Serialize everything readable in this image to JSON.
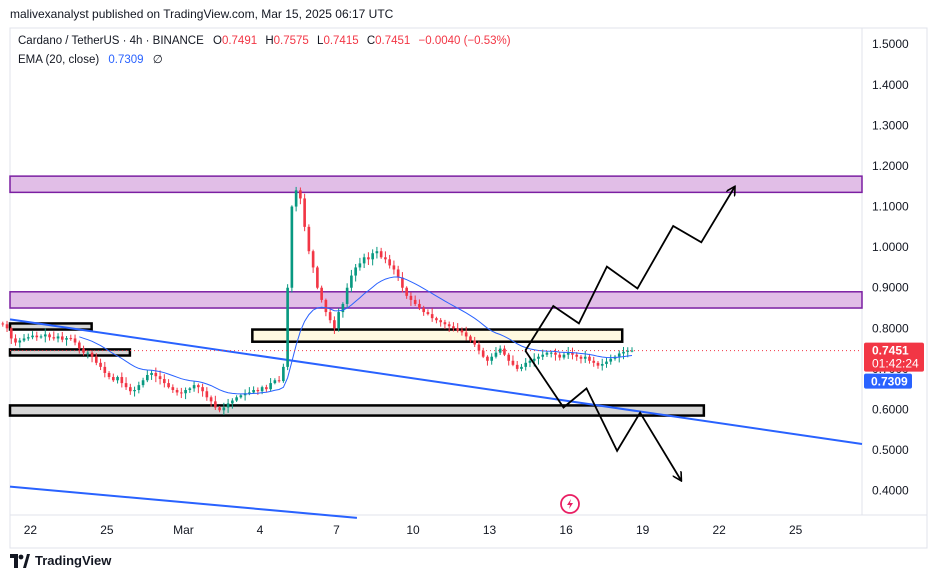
{
  "header": {
    "text": "malivexanalyst published on TradingView.com, Mar 15, 2025 06:17 UTC"
  },
  "legend": {
    "symbol": "Cardano / TetherUS · 4h · BINANCE",
    "o_label": "O",
    "o": "0.7491",
    "h_label": "H",
    "h": "0.7575",
    "l_label": "L",
    "l": "0.7415",
    "c_label": "C",
    "c": "0.7451",
    "change": "−0.0040 (−0.53%)",
    "ema_label": "EMA (20, close)",
    "ema_value": "0.7309",
    "ema_symbol": "∅"
  },
  "price_tags": {
    "last": "0.7451",
    "countdown": "01:42:24",
    "ema": "0.7309"
  },
  "footer": {
    "brand": "TradingView"
  },
  "colors": {
    "up": "#089981",
    "down": "#f23645",
    "ema": "#2962ff",
    "trend": "#2962ff",
    "zone_purple_fill": "#e1bee7",
    "zone_purple_border": "#7b1fa2",
    "zone_yellow_fill": "#fff9e1",
    "zone_gray_fill": "#d6d6d6",
    "projection": "#000000"
  },
  "chart_data": {
    "type": "candlestick",
    "instrument": "Cardano / TetherUS",
    "timeframe": "4h",
    "exchange": "BINANCE",
    "y_axis": {
      "ticks": [
        0.4,
        0.5,
        0.6,
        0.7,
        0.8,
        0.9,
        1.0,
        1.1,
        1.2,
        1.3,
        1.4,
        1.5
      ],
      "tick_labels": [
        "0.4000",
        "0.5000",
        "0.6000",
        "0.7000",
        "0.8000",
        "0.9000",
        "1.0000",
        "1.1000",
        "1.2000",
        "1.3000",
        "1.4000",
        "1.5000"
      ],
      "ylim": [
        0.34,
        1.54
      ]
    },
    "x_axis": {
      "tick_positions": [
        0,
        3,
        6,
        9,
        12,
        15,
        18,
        21,
        24,
        27,
        30
      ],
      "tick_labels": [
        "22",
        "25",
        "Mar",
        "4",
        "7",
        "10",
        "13",
        "16",
        "19",
        "22",
        "25"
      ],
      "xlim_days": [
        -0.8,
        32.6
      ],
      "first_tick": "Feb 22"
    },
    "closes_4h": [
      0.812,
      0.81,
      0.8,
      0.775,
      0.765,
      0.77,
      0.775,
      0.778,
      0.782,
      0.778,
      0.78,
      0.785,
      0.778,
      0.775,
      0.78,
      0.772,
      0.776,
      0.775,
      0.765,
      0.75,
      0.74,
      0.74,
      0.73,
      0.715,
      0.705,
      0.69,
      0.68,
      0.672,
      0.68,
      0.665,
      0.655,
      0.645,
      0.648,
      0.66,
      0.672,
      0.685,
      0.69,
      0.682,
      0.675,
      0.665,
      0.655,
      0.648,
      0.642,
      0.64,
      0.648,
      0.652,
      0.66,
      0.655,
      0.645,
      0.63,
      0.62,
      0.605,
      0.598,
      0.605,
      0.615,
      0.622,
      0.63,
      0.635,
      0.64,
      0.642,
      0.648,
      0.645,
      0.655,
      0.65,
      0.665,
      0.672,
      0.67,
      0.705,
      0.9,
      1.1,
      1.14,
      1.12,
      1.05,
      0.99,
      0.95,
      0.9,
      0.87,
      0.84,
      0.82,
      0.8,
      0.84,
      0.86,
      0.9,
      0.93,
      0.95,
      0.96,
      0.975,
      0.97,
      0.985,
      0.99,
      0.975,
      0.97,
      0.955,
      0.945,
      0.925,
      0.9,
      0.88,
      0.87,
      0.86,
      0.85,
      0.84,
      0.835,
      0.825,
      0.82,
      0.815,
      0.81,
      0.805,
      0.8,
      0.795,
      0.79,
      0.78,
      0.77,
      0.76,
      0.745,
      0.73,
      0.72,
      0.73,
      0.74,
      0.75,
      0.735,
      0.72,
      0.71,
      0.7,
      0.705,
      0.715,
      0.72,
      0.725,
      0.73,
      0.735,
      0.74,
      0.74,
      0.735,
      0.728,
      0.735,
      0.74,
      0.735,
      0.73,
      0.725,
      0.73,
      0.72,
      0.715,
      0.708,
      0.712,
      0.718,
      0.725,
      0.73,
      0.738,
      0.742,
      0.745,
      0.7451
    ],
    "ema_20": "0.7309",
    "last_close": 0.7451,
    "horizontal_zones": [
      {
        "name": "resistance-upper",
        "low": 1.135,
        "high": 1.175,
        "x_start": -0.8,
        "x_end": 32.6,
        "style": "purple"
      },
      {
        "name": "resistance-lower",
        "low": 0.85,
        "high": 0.89,
        "x_start": -0.8,
        "x_end": 32.6,
        "style": "purple"
      },
      {
        "name": "mid-zone",
        "low": 0.767,
        "high": 0.797,
        "x_start": 8.7,
        "x_end": 23.2,
        "style": "yellow"
      },
      {
        "name": "left-zone-1",
        "low": 0.797,
        "high": 0.812,
        "x_start": -0.8,
        "x_end": 2.4,
        "style": "black"
      },
      {
        "name": "left-zone-2",
        "low": 0.733,
        "high": 0.748,
        "x_start": -0.8,
        "x_end": 3.9,
        "style": "black"
      },
      {
        "name": "support-zone",
        "low": 0.585,
        "high": 0.61,
        "x_start": -0.8,
        "x_end": 26.4,
        "style": "gray"
      }
    ],
    "trend_lines": [
      {
        "name": "descending-trendline",
        "points": [
          [
            -0.8,
            0.822
          ],
          [
            32.6,
            0.515
          ]
        ]
      },
      {
        "name": "lower-trendline",
        "points": [
          [
            -0.8,
            0.41
          ],
          [
            12.8,
            0.333
          ]
        ]
      }
    ],
    "projections": [
      {
        "name": "bullish-path",
        "points": [
          [
            19.4,
            0.745
          ],
          [
            20.5,
            0.855
          ],
          [
            21.5,
            0.812
          ],
          [
            22.6,
            0.952
          ],
          [
            23.8,
            0.898
          ],
          [
            25.2,
            1.052
          ],
          [
            26.3,
            1.012
          ],
          [
            27.6,
            1.148
          ]
        ]
      },
      {
        "name": "bearish-path",
        "points": [
          [
            19.4,
            0.745
          ],
          [
            20.9,
            0.605
          ],
          [
            21.8,
            0.652
          ],
          [
            23.0,
            0.498
          ],
          [
            23.9,
            0.592
          ],
          [
            25.5,
            0.426
          ]
        ]
      }
    ],
    "last_price_line": 0.7451
  }
}
